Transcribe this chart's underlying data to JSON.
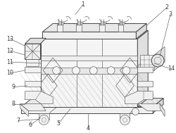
{
  "bg_color": "#ffffff",
  "line_color": "#444444",
  "lw": 0.7,
  "tlw": 0.4,
  "label_fontsize": 5.8,
  "figure_width": 2.5,
  "figure_height": 1.89,
  "dpi": 100
}
